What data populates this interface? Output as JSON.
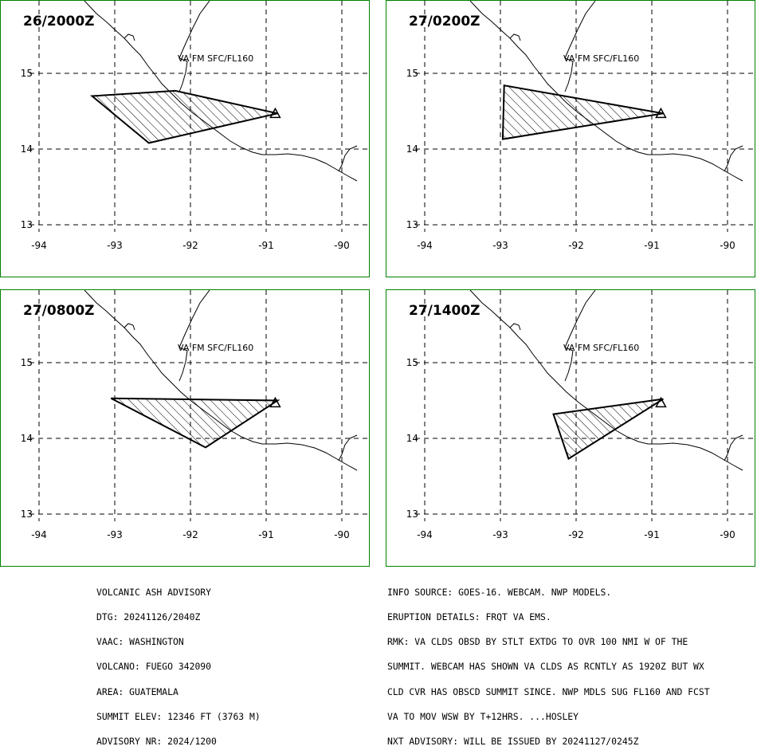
{
  "panels": [
    {
      "title": "26/2000Z",
      "label": "VA FM SFC/FL160",
      "polygon": [
        [
          -93.3,
          14.7
        ],
        [
          -92.2,
          14.77
        ],
        [
          -90.85,
          14.47
        ],
        [
          -92.55,
          14.08
        ]
      ]
    },
    {
      "title": "27/0200Z",
      "label": "VA FM SFC/FL160",
      "polygon": [
        [
          -92.95,
          14.84
        ],
        [
          -90.85,
          14.47
        ],
        [
          -92.97,
          14.13
        ]
      ]
    },
    {
      "title": "27/0800Z",
      "label": "VA FM SFC/FL160",
      "polygon": [
        [
          -93.05,
          14.53
        ],
        [
          -90.85,
          14.5
        ],
        [
          -91.8,
          13.88
        ]
      ]
    },
    {
      "title": "27/1400Z",
      "label": "VA FM SFC/FL160",
      "polygon": [
        [
          -92.3,
          14.32
        ],
        [
          -90.85,
          14.52
        ],
        [
          -92.1,
          13.73
        ]
      ]
    }
  ],
  "axes": {
    "lon_ticks": [
      "-94",
      "-93",
      "-92",
      "-91",
      "-90"
    ],
    "lat_ticks": [
      "15",
      "14",
      "13"
    ]
  },
  "advisory_left": [
    "VOLCANIC ASH ADVISORY",
    "DTG: 20241126/2040Z",
    "VAAC: WASHINGTON",
    "VOLCANO: FUEGO 342090",
    "AREA: GUATEMALA",
    "SUMMIT ELEV: 12346 FT (3763 M)",
    "ADVISORY NR: 2024/1200"
  ],
  "advisory_right": [
    "INFO SOURCE: GOES-16. WEBCAM. NWP MODELS.",
    "ERUPTION DETAILS: FRQT VA EMS.",
    "RMK: VA CLDS OBSD BY STLT EXTDG TO OVR 100 NMI W OF THE",
    "SUMMIT. WEBCAM HAS SHOWN VA CLDS AS RCNTLY AS 1920Z BUT WX",
    "CLD CVR HAS OBSCD SUMMIT SINCE. NWP MDLS SUG FL160 AND FCST",
    "VA TO MOV WSW BY T+12HRS. ...HOSLEY",
    "NXT ADVISORY: WILL BE ISSUED BY 20241127/0245Z"
  ],
  "colors": {
    "frame": "#008000",
    "lines": "#000000",
    "grid": "#000000"
  }
}
